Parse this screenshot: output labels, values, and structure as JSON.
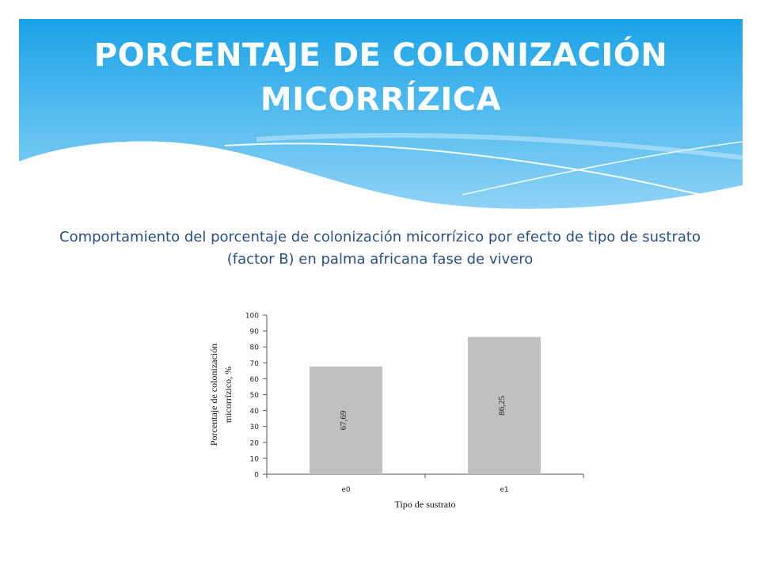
{
  "slide": {
    "title_line1": "PORCENTAJE DE COLONIZACIÓN",
    "title_line2": "MICORRÍZICA",
    "subtitle": "Comportamiento del  porcentaje de colonización micorrízico por efecto de tipo de sustrato (factor B) en palma africana fase de vivero"
  },
  "colors": {
    "banner_top": "#1aa3e8",
    "banner_bottom": "#8fd3f6",
    "subtitle_text": "#2a4f86",
    "bar_fill": "#c0c0c0"
  },
  "chart_data": {
    "type": "bar",
    "categories": [
      "e0",
      "e1"
    ],
    "values": [
      67.69,
      86.25
    ],
    "data_labels": [
      "67,69",
      "86,25"
    ],
    "xlabel": "Tipo  de sustrato",
    "ylabel_line1": "Porcentaje de colonización",
    "ylabel_line2": "micorrízico,  %",
    "ylim": [
      0,
      100
    ],
    "yticks": [
      0,
      10,
      20,
      30,
      40,
      50,
      60,
      70,
      80,
      90,
      100
    ],
    "grid": false,
    "legend": "none"
  }
}
